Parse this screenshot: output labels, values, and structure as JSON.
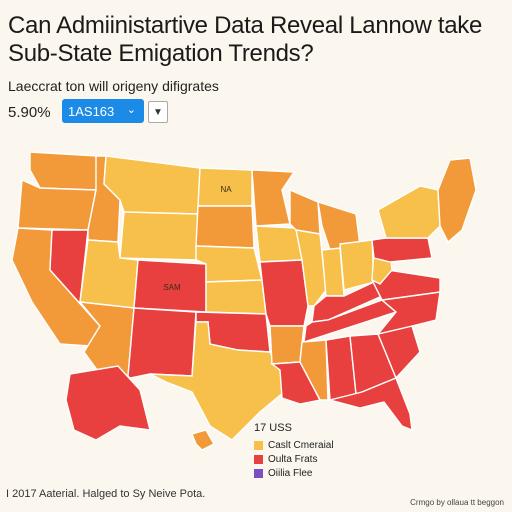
{
  "title": "Can Admiinistartive Data Reveal Lannow take Sub-State Emigation Trends?",
  "subtitle": "Laeccrat ton will origeny difigrates",
  "stat": "5.90%",
  "selector": {
    "value": "1AS163",
    "chevron": "chevron-down-icon",
    "secondary_chevron": "chevron-down-icon"
  },
  "legend": {
    "heading": "17 USS",
    "items": [
      {
        "label": "Caslt Cmeraial",
        "color": "#f7c04a"
      },
      {
        "label": "Oulta Frats",
        "color": "#e8403e"
      },
      {
        "label": "Oiilia Flee",
        "color": "#7b4fbf"
      }
    ]
  },
  "footer": "I 2017 Aaterial. Halged to Sy Neive Pota.",
  "credit": "Crmgo by ollaua tt beggon",
  "colors": {
    "light": "#f7c04a",
    "pale": "#fbd774",
    "orange": "#f29a3a",
    "red": "#e8403e",
    "border": "#ffffff",
    "background": "#fbf7ee"
  },
  "states": [
    {
      "id": "WA",
      "label": "",
      "fill": "orange"
    },
    {
      "id": "OR",
      "label": "",
      "fill": "orange"
    },
    {
      "id": "CA",
      "label": "",
      "fill": "orange"
    },
    {
      "id": "NV",
      "label": "",
      "fill": "red"
    },
    {
      "id": "ID",
      "label": "",
      "fill": "orange"
    },
    {
      "id": "MT",
      "label": "",
      "fill": "light"
    },
    {
      "id": "WY",
      "label": "",
      "fill": "light"
    },
    {
      "id": "UT",
      "label": "",
      "fill": "light"
    },
    {
      "id": "AZ",
      "label": "",
      "fill": "orange"
    },
    {
      "id": "CO",
      "label": "SAM",
      "fill": "red"
    },
    {
      "id": "NM",
      "label": "",
      "fill": "red"
    },
    {
      "id": "ND",
      "label": "NA",
      "fill": "light"
    },
    {
      "id": "SD",
      "label": "",
      "fill": "orange"
    },
    {
      "id": "NE",
      "label": "",
      "fill": "light"
    },
    {
      "id": "KS",
      "label": "",
      "fill": "light"
    },
    {
      "id": "OK",
      "label": "",
      "fill": "red"
    },
    {
      "id": "TX",
      "label": "",
      "fill": "light"
    },
    {
      "id": "MN",
      "label": "",
      "fill": "orange"
    },
    {
      "id": "IA",
      "label": "",
      "fill": "light"
    },
    {
      "id": "MO",
      "label": "",
      "fill": "red"
    },
    {
      "id": "AR",
      "label": "",
      "fill": "orange"
    },
    {
      "id": "LA",
      "label": "",
      "fill": "red"
    },
    {
      "id": "WI",
      "label": "",
      "fill": "orange"
    },
    {
      "id": "IL",
      "label": "",
      "fill": "light"
    },
    {
      "id": "MI",
      "label": "",
      "fill": "orange"
    },
    {
      "id": "IN",
      "label": "",
      "fill": "light"
    },
    {
      "id": "OH",
      "label": "",
      "fill": "light"
    },
    {
      "id": "KY",
      "label": "",
      "fill": "red"
    },
    {
      "id": "TN",
      "label": "",
      "fill": "red"
    },
    {
      "id": "MS",
      "label": "",
      "fill": "orange"
    },
    {
      "id": "AL",
      "label": "",
      "fill": "red"
    },
    {
      "id": "GA",
      "label": "",
      "fill": "red"
    },
    {
      "id": "FL",
      "label": "",
      "fill": "red"
    },
    {
      "id": "SC",
      "label": "",
      "fill": "red"
    },
    {
      "id": "NC",
      "label": "",
      "fill": "red"
    },
    {
      "id": "VA",
      "label": "",
      "fill": "red"
    },
    {
      "id": "WV",
      "label": "",
      "fill": "light"
    },
    {
      "id": "PA",
      "label": "",
      "fill": "red"
    },
    {
      "id": "NY",
      "label": "",
      "fill": "light"
    },
    {
      "id": "NE-states",
      "label": "",
      "fill": "orange"
    },
    {
      "id": "AK",
      "label": "",
      "fill": "red"
    },
    {
      "id": "HI",
      "label": "",
      "fill": "orange"
    }
  ]
}
